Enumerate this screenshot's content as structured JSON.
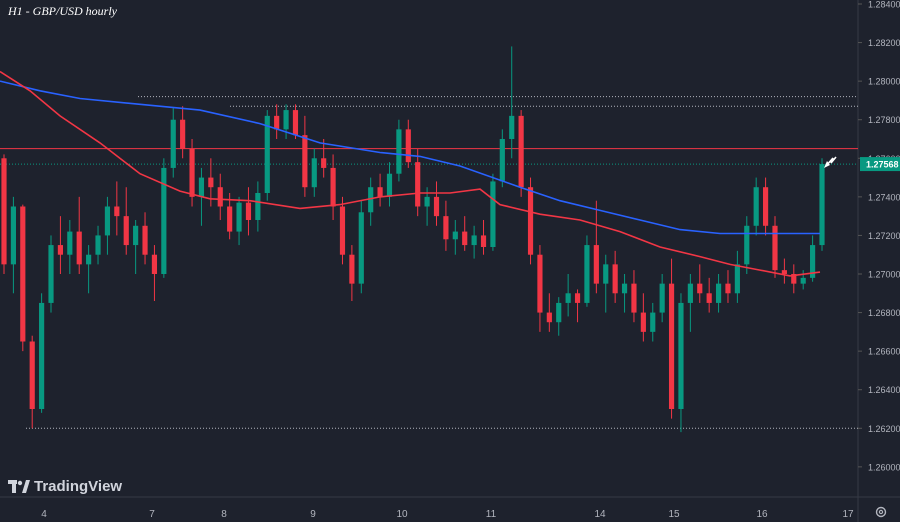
{
  "chart_data": {
    "type": "candlestick",
    "title": "H1 - GBP/USD hourly",
    "y_ticks": [
      "1.28400",
      "1.28200",
      "1.28000",
      "1.27800",
      "1.27600",
      "1.27400",
      "1.27200",
      "1.27000",
      "1.26800",
      "1.26600",
      "1.26400",
      "1.26200",
      "1.26000"
    ],
    "x_ticks": [
      "4",
      "7",
      "8",
      "9",
      "10",
      "11",
      "14",
      "15",
      "16",
      "17"
    ],
    "ylim": [
      1.2588,
      1.284
    ],
    "last_price_label": "1.27568",
    "resistance_level": 1.2765,
    "dotted_levels": [
      1.2792,
      1.2787,
      1.262,
      1.2757
    ],
    "series": [
      {
        "type": "line",
        "color": "#2962ff",
        "points": [
          [
            0,
            1.28
          ],
          [
            40,
            1.2795
          ],
          [
            80,
            1.2791
          ],
          [
            140,
            1.2788
          ],
          [
            200,
            1.2785
          ],
          [
            260,
            1.2778
          ],
          [
            320,
            1.2768
          ],
          [
            380,
            1.2763
          ],
          [
            420,
            1.2761
          ],
          [
            460,
            1.2756
          ],
          [
            520,
            1.2745
          ],
          [
            560,
            1.2738
          ],
          [
            600,
            1.2733
          ],
          [
            640,
            1.2728
          ],
          [
            680,
            1.2723
          ],
          [
            720,
            1.2721
          ],
          [
            760,
            1.2721
          ],
          [
            820,
            1.2721
          ]
        ]
      },
      {
        "type": "line",
        "color": "#f23645",
        "points": [
          [
            0,
            1.2805
          ],
          [
            30,
            1.2795
          ],
          [
            60,
            1.2782
          ],
          [
            100,
            1.2768
          ],
          [
            140,
            1.2752
          ],
          [
            180,
            1.2743
          ],
          [
            210,
            1.2739
          ],
          [
            250,
            1.2738
          ],
          [
            300,
            1.2734
          ],
          [
            340,
            1.2736
          ],
          [
            380,
            1.274
          ],
          [
            420,
            1.2742
          ],
          [
            450,
            1.2742
          ],
          [
            480,
            1.2744
          ],
          [
            500,
            1.2736
          ],
          [
            540,
            1.2731
          ],
          [
            580,
            1.2728
          ],
          [
            620,
            1.2722
          ],
          [
            660,
            1.2714
          ],
          [
            700,
            1.2709
          ],
          [
            730,
            1.2705
          ],
          [
            760,
            1.2702
          ],
          [
            790,
            1.2699
          ],
          [
            820,
            1.2701
          ]
        ]
      }
    ],
    "candle_colors": {
      "up": "#089981",
      "down": "#f23645"
    },
    "candles": [
      [
        1.276,
        1.2762,
        1.27,
        1.2705
      ],
      [
        1.2705,
        1.274,
        1.269,
        1.2735
      ],
      [
        1.2735,
        1.2736,
        1.266,
        1.2665
      ],
      [
        1.2665,
        1.2668,
        1.262,
        1.263
      ],
      [
        1.263,
        1.269,
        1.2628,
        1.2685
      ],
      [
        1.2685,
        1.272,
        1.268,
        1.2715
      ],
      [
        1.2715,
        1.273,
        1.27,
        1.271
      ],
      [
        1.271,
        1.2728,
        1.27,
        1.2722
      ],
      [
        1.2722,
        1.274,
        1.27,
        1.2705
      ],
      [
        1.2705,
        1.2715,
        1.269,
        1.271
      ],
      [
        1.271,
        1.2725,
        1.2705,
        1.272
      ],
      [
        1.272,
        1.274,
        1.271,
        1.2735
      ],
      [
        1.2735,
        1.2748,
        1.272,
        1.273
      ],
      [
        1.273,
        1.2745,
        1.271,
        1.2715
      ],
      [
        1.2715,
        1.2728,
        1.27,
        1.2725
      ],
      [
        1.2725,
        1.2732,
        1.2705,
        1.271
      ],
      [
        1.271,
        1.2715,
        1.2686,
        1.27
      ],
      [
        1.27,
        1.276,
        1.2698,
        1.2755
      ],
      [
        1.2755,
        1.2786,
        1.275,
        1.278
      ],
      [
        1.278,
        1.2787,
        1.276,
        1.2765
      ],
      [
        1.2765,
        1.277,
        1.2735,
        1.274
      ],
      [
        1.274,
        1.2755,
        1.2725,
        1.275
      ],
      [
        1.275,
        1.276,
        1.2735,
        1.2745
      ],
      [
        1.2745,
        1.2752,
        1.2728,
        1.2735
      ],
      [
        1.2735,
        1.2742,
        1.2718,
        1.2722
      ],
      [
        1.2722,
        1.274,
        1.2715,
        1.2737
      ],
      [
        1.2737,
        1.2745,
        1.272,
        1.2728
      ],
      [
        1.2728,
        1.2748,
        1.2722,
        1.2742
      ],
      [
        1.2742,
        1.2785,
        1.2738,
        1.2782
      ],
      [
        1.2782,
        1.2788,
        1.277,
        1.2775
      ],
      [
        1.2775,
        1.2788,
        1.277,
        1.2785
      ],
      [
        1.2785,
        1.2788,
        1.277,
        1.2772
      ],
      [
        1.2772,
        1.2782,
        1.274,
        1.2745
      ],
      [
        1.2745,
        1.2765,
        1.274,
        1.276
      ],
      [
        1.276,
        1.277,
        1.275,
        1.2755
      ],
      [
        1.2755,
        1.2762,
        1.2728,
        1.2735
      ],
      [
        1.2735,
        1.274,
        1.2705,
        1.271
      ],
      [
        1.271,
        1.2715,
        1.2686,
        1.2695
      ],
      [
        1.2695,
        1.2738,
        1.269,
        1.2732
      ],
      [
        1.2732,
        1.275,
        1.2725,
        1.2745
      ],
      [
        1.2745,
        1.2752,
        1.2735,
        1.274
      ],
      [
        1.274,
        1.2758,
        1.2735,
        1.2752
      ],
      [
        1.2752,
        1.278,
        1.2748,
        1.2775
      ],
      [
        1.2775,
        1.278,
        1.2755,
        1.2758
      ],
      [
        1.2758,
        1.2765,
        1.273,
        1.2735
      ],
      [
        1.2735,
        1.2745,
        1.2725,
        1.274
      ],
      [
        1.274,
        1.2748,
        1.2725,
        1.273
      ],
      [
        1.273,
        1.2738,
        1.2712,
        1.2718
      ],
      [
        1.2718,
        1.2728,
        1.271,
        1.2722
      ],
      [
        1.2722,
        1.273,
        1.2712,
        1.2715
      ],
      [
        1.2715,
        1.2725,
        1.2708,
        1.272
      ],
      [
        1.272,
        1.2728,
        1.271,
        1.2714
      ],
      [
        1.2714,
        1.2752,
        1.2712,
        1.2748
      ],
      [
        1.2748,
        1.2775,
        1.2745,
        1.277
      ],
      [
        1.277,
        1.2818,
        1.276,
        1.2782
      ],
      [
        1.2782,
        1.2785,
        1.274,
        1.2745
      ],
      [
        1.2745,
        1.275,
        1.2705,
        1.271
      ],
      [
        1.271,
        1.2715,
        1.267,
        1.268
      ],
      [
        1.268,
        1.269,
        1.267,
        1.2675
      ],
      [
        1.2675,
        1.2688,
        1.2668,
        1.2685
      ],
      [
        1.2685,
        1.27,
        1.2678,
        1.269
      ],
      [
        1.269,
        1.2692,
        1.2675,
        1.2685
      ],
      [
        1.2685,
        1.272,
        1.2683,
        1.2715
      ],
      [
        1.2715,
        1.2738,
        1.269,
        1.2695
      ],
      [
        1.2695,
        1.271,
        1.268,
        1.2705
      ],
      [
        1.2705,
        1.2712,
        1.2685,
        1.269
      ],
      [
        1.269,
        1.27,
        1.268,
        1.2695
      ],
      [
        1.2695,
        1.2702,
        1.2675,
        1.268
      ],
      [
        1.268,
        1.269,
        1.2665,
        1.267
      ],
      [
        1.267,
        1.2685,
        1.2665,
        1.268
      ],
      [
        1.268,
        1.27,
        1.2675,
        1.2695
      ],
      [
        1.2695,
        1.2708,
        1.2625,
        1.263
      ],
      [
        1.263,
        1.269,
        1.2618,
        1.2685
      ],
      [
        1.2685,
        1.27,
        1.267,
        1.2695
      ],
      [
        1.2695,
        1.2705,
        1.2685,
        1.269
      ],
      [
        1.269,
        1.2698,
        1.268,
        1.2685
      ],
      [
        1.2685,
        1.27,
        1.268,
        1.2695
      ],
      [
        1.2695,
        1.2702,
        1.2685,
        1.269
      ],
      [
        1.269,
        1.2712,
        1.2685,
        1.2705
      ],
      [
        1.2705,
        1.273,
        1.27,
        1.2725
      ],
      [
        1.2725,
        1.275,
        1.272,
        1.2745
      ],
      [
        1.2745,
        1.275,
        1.272,
        1.2725
      ],
      [
        1.2725,
        1.273,
        1.2698,
        1.2702
      ],
      [
        1.2702,
        1.2708,
        1.2695,
        1.27
      ],
      [
        1.27,
        1.2705,
        1.269,
        1.2695
      ],
      [
        1.2695,
        1.2702,
        1.2692,
        1.2698
      ],
      [
        1.2698,
        1.272,
        1.2696,
        1.2715
      ],
      [
        1.2715,
        1.276,
        1.2712,
        1.2757
      ]
    ],
    "grid": false
  }
}
